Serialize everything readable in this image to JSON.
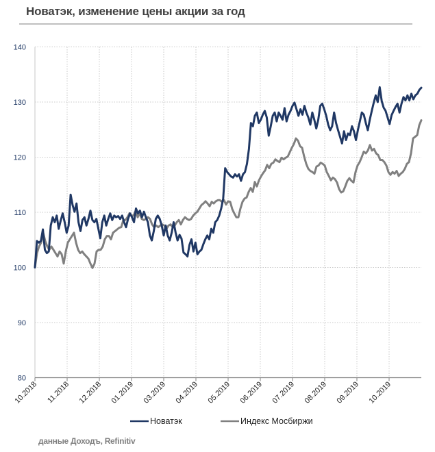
{
  "chart_data": {
    "type": "line",
    "title": "Новатэк, изменение цены акции за год",
    "xlabel": "",
    "ylabel": "",
    "ylim": [
      80,
      140
    ],
    "yticks": [
      80,
      90,
      100,
      110,
      120,
      130,
      140
    ],
    "x_range": [
      0,
      12
    ],
    "xtick_labels": [
      "10.2018",
      "11.2018",
      "12.2018",
      "01.2019",
      "03.2019",
      "04.2019",
      "05.2019",
      "06.2019",
      "07.2019",
      "08.2019",
      "09.2019",
      "10.2019"
    ],
    "grid": true,
    "legend_position": "bottom",
    "series": [
      {
        "name": "Новатэк",
        "color": "#203864",
        "values": [
          100.0,
          104.8,
          104.5,
          104.8,
          106.9,
          103.2,
          102.6,
          102.9,
          107.6,
          109.1,
          108.2,
          109.4,
          107.0,
          108.5,
          109.8,
          108.2,
          106.3,
          107.6,
          113.2,
          111.3,
          110.1,
          111.6,
          108.2,
          106.6,
          108.6,
          109.1,
          107.6,
          108.8,
          110.3,
          108.6,
          108.2,
          108.8,
          107.0,
          105.3,
          108.2,
          109.4,
          107.6,
          108.8,
          109.8,
          108.6,
          109.4,
          109.1,
          109.3,
          108.8,
          109.4,
          108.2,
          107.3,
          108.8,
          109.8,
          109.1,
          108.2,
          110.7,
          109.8,
          110.3,
          109.1,
          110.1,
          109.1,
          108.2,
          105.8,
          104.9,
          106.6,
          108.8,
          109.4,
          108.8,
          107.6,
          105.8,
          107.6,
          105.8,
          104.9,
          106.3,
          108.2,
          106.3,
          104.9,
          105.9,
          105.2,
          102.7,
          102.4,
          102.0,
          104.1,
          105.1,
          102.9,
          104.5,
          102.4,
          102.9,
          103.2,
          104.2,
          105.1,
          105.8,
          105.1,
          107.0,
          106.3,
          108.2,
          108.6,
          109.4,
          110.7,
          112.5,
          118.0,
          117.3,
          116.9,
          116.5,
          116.3,
          116.9,
          116.5,
          116.9,
          115.7,
          116.9,
          117.3,
          118.8,
          121.5,
          126.2,
          125.6,
          127.5,
          128.1,
          126.2,
          126.8,
          127.7,
          128.4,
          127.2,
          123.9,
          125.6,
          127.5,
          128.1,
          126.5,
          128.1,
          127.5,
          126.8,
          128.9,
          126.5,
          127.7,
          128.4,
          129.3,
          129.9,
          128.7,
          127.5,
          128.7,
          127.7,
          129.3,
          128.1,
          127.2,
          125.9,
          128.1,
          126.8,
          125.2,
          126.8,
          129.3,
          129.7,
          128.7,
          127.5,
          125.9,
          124.9,
          125.6,
          128.1,
          126.2,
          124.9,
          123.7,
          122.5,
          124.7,
          123.1,
          124.3,
          124.0,
          125.6,
          124.7,
          123.1,
          124.9,
          126.5,
          128.1,
          127.7,
          126.2,
          124.9,
          126.8,
          128.4,
          129.9,
          131.2,
          130.0,
          132.7,
          130.2,
          129.0,
          128.4,
          127.2,
          126.0,
          127.6,
          128.4,
          129.1,
          129.7,
          128.1,
          129.7,
          130.9,
          130.3,
          131.2,
          130.3,
          131.5,
          130.5,
          131.2,
          131.5,
          132.2,
          132.6
        ]
      },
      {
        "name": "Индекс Мосбиржи",
        "color": "#808080",
        "values": [
          100.0,
          102.6,
          103.8,
          104.5,
          106.3,
          104.8,
          103.8,
          103.2,
          103.8,
          103.2,
          102.6,
          102.0,
          102.9,
          102.4,
          100.7,
          102.9,
          104.5,
          105.1,
          105.7,
          106.3,
          104.5,
          103.2,
          102.6,
          102.9,
          102.4,
          102.0,
          101.6,
          100.7,
          99.9,
          100.7,
          102.9,
          103.2,
          103.2,
          103.8,
          105.1,
          105.7,
          105.7,
          105.1,
          106.3,
          106.6,
          106.9,
          107.2,
          107.3,
          108.6,
          108.6,
          109.1,
          109.8,
          109.4,
          109.4,
          110.3,
          109.1,
          109.8,
          108.8,
          108.6,
          108.8,
          109.1,
          108.8,
          107.8,
          107.3,
          107.6,
          107.3,
          107.6,
          107.8,
          107.6,
          107.0,
          107.6,
          107.8,
          107.3,
          107.6,
          108.2,
          108.6,
          107.8,
          108.6,
          109.1,
          108.8,
          108.6,
          108.8,
          109.4,
          109.8,
          110.1,
          110.7,
          111.3,
          111.6,
          112.0,
          111.6,
          111.1,
          111.9,
          111.6,
          112.0,
          112.2,
          112.2,
          111.9,
          112.2,
          111.4,
          112.0,
          111.9,
          110.6,
          109.8,
          109.1,
          109.1,
          110.7,
          111.9,
          112.5,
          112.7,
          113.7,
          114.4,
          113.7,
          115.5,
          114.7,
          115.8,
          116.5,
          117.1,
          117.6,
          118.6,
          118.0,
          118.8,
          119.0,
          119.6,
          119.3,
          119.1,
          119.9,
          119.6,
          119.9,
          120.1,
          120.9,
          121.7,
          122.4,
          123.4,
          123.0,
          122.0,
          121.7,
          120.1,
          118.8,
          117.9,
          117.5,
          117.3,
          117.0,
          118.3,
          118.5,
          119.0,
          118.8,
          118.5,
          117.3,
          116.6,
          115.8,
          116.3,
          116.0,
          115.4,
          114.2,
          113.6,
          113.8,
          114.7,
          115.7,
          116.2,
          115.7,
          115.4,
          117.3,
          118.5,
          119.1,
          120.0,
          121.0,
          120.7,
          121.2,
          122.2,
          121.2,
          121.5,
          120.7,
          120.4,
          119.5,
          119.5,
          119.1,
          118.5,
          117.3,
          116.8,
          117.3,
          117.0,
          117.5,
          116.6,
          117.0,
          117.3,
          117.9,
          118.8,
          119.1,
          120.7,
          123.4,
          123.7,
          124.0,
          125.8,
          126.7
        ]
      }
    ]
  },
  "source_note": "данные Доходъ, Refinitiv"
}
